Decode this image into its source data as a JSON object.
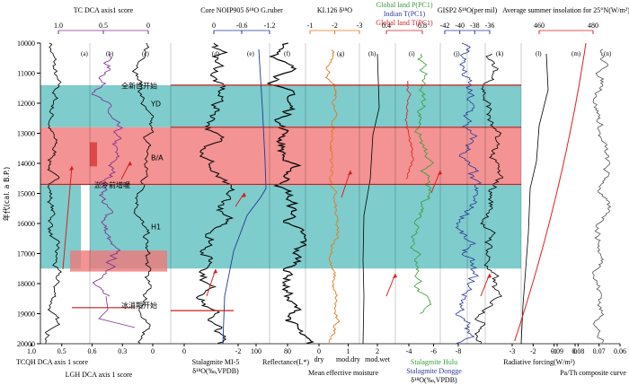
{
  "chart_data": {
    "type": "line",
    "axis_colors": {
      "a": "#000000",
      "b": "#7b2c8e",
      "c": "#000000",
      "d": "#000000",
      "e": "#1f3a93",
      "f": "#000000",
      "g": "#e07a1f",
      "h": "#000000",
      "i_green": "#3a9a3a",
      "i_blue": "#2b3a9a",
      "i_red": "#d42020",
      "j": "#2b3a9a",
      "k": "#000000",
      "l": "#000000",
      "m": "#e11d1d",
      "n": "#555555"
    },
    "y_axis": {
      "label": "年代(cal. a B.P.)",
      "range": [
        10000,
        20000
      ],
      "ticks": [
        "10000",
        "11000",
        "12000",
        "13000",
        "14000",
        "15000",
        "16000",
        "17000",
        "18000",
        "19000",
        "20000"
      ]
    },
    "bands": {
      "teal": "#5fbfbf",
      "pink": "#f07878",
      "ranges": [
        {
          "kind": "teal",
          "from": 11400,
          "to": 12800
        },
        {
          "kind": "pink",
          "from": 12800,
          "to": 14700
        },
        {
          "kind": "teal",
          "from": 14700,
          "to": 17500
        }
      ]
    },
    "annotations": [
      {
        "text": "全新世开始",
        "age": 11500
      },
      {
        "text": "YD",
        "age": 12100
      },
      {
        "text": "B/A",
        "age": 13900
      },
      {
        "text": "淤令前增暖",
        "age": 14800
      },
      {
        "text": "H1",
        "age": 16200
      },
      {
        "text": "冰消期开始",
        "age": 18800
      }
    ],
    "panel_letters": [
      "(a)",
      "(b)",
      "(c)",
      "(d)",
      "(e)",
      "(f)",
      "(g)",
      "(h)",
      "(i)",
      "(j)",
      "(k)",
      "(l)",
      "(m)",
      "(n)"
    ],
    "top_axes": [
      {
        "id": "tc",
        "title": "TC DCA axis1 score",
        "ticks": [
          "1.0",
          "0.5",
          "0"
        ],
        "color": "#7b2c8e"
      },
      {
        "id": "noip",
        "title": "Core NOIP905 δ¹⁸O G.ruber",
        "ticks": [
          "0",
          "-0.6",
          "-1.2"
        ],
        "color": "#1f3a93"
      },
      {
        "id": "ki",
        "title": "KI.126 δ¹⁸O",
        "ticks": [
          "-1",
          "-2",
          "-3"
        ],
        "color": "#e07a1f"
      },
      {
        "id": "pc1",
        "title_green": "Global land P(PC1)",
        "title_blue": "Indian T(PC1)",
        "title_red": "Global land T(PC1)",
        "ticks": [
          "0.4",
          "0.8"
        ],
        "color": "#d42020"
      },
      {
        "id": "gisp",
        "title": "GISP2 δ¹⁸O(per mil)",
        "ticks": [
          "-42",
          "-40",
          "-38",
          "-36"
        ],
        "color": "#2b3a9a"
      },
      {
        "id": "insol",
        "title": "Average summer insolation for 25°N(W/m²)",
        "ticks": [
          "460",
          "480"
        ],
        "color": "#e11d1d"
      }
    ],
    "bottom_axes": [
      {
        "id": "tcqh",
        "title": "TCQH DCA axis 1 score",
        "ticks": [
          "1.0",
          "0.5",
          "0.6",
          "0.3",
          "0"
        ]
      },
      {
        "id": "lgh",
        "title": "LGH DCA axis 1 score"
      },
      {
        "id": "mi5",
        "title": "Stalagmite MI-5",
        "title2": "δ¹⁸O(‰,VPDB)",
        "ticks": [
          "0",
          "-2"
        ]
      },
      {
        "id": "refl",
        "title": "Reflectance(L*)",
        "ticks": [
          "100",
          "80"
        ]
      },
      {
        "id": "moist",
        "title": "Mean effective moisture",
        "ticks": [
          "0",
          "1",
          "2"
        ],
        "labels": [
          "dry",
          "mod.dry",
          "mod.wet"
        ]
      },
      {
        "id": "hulu",
        "title": "Stalagmite Hulu",
        "title2": "Stalagmite Dongge",
        "title3": "δ¹⁸O(‰,VPDB)",
        "ticks": [
          "-4",
          "-6",
          "-8"
        ]
      },
      {
        "id": "rad",
        "title": "Radiative forcing(W/m²)",
        "ticks": [
          "-3",
          "-2",
          "-1",
          "0"
        ]
      },
      {
        "id": "pa",
        "title": "Pa/Th composite curve",
        "ticks": [
          "0.09",
          "0.08",
          "0.07",
          "0.06"
        ]
      }
    ]
  }
}
